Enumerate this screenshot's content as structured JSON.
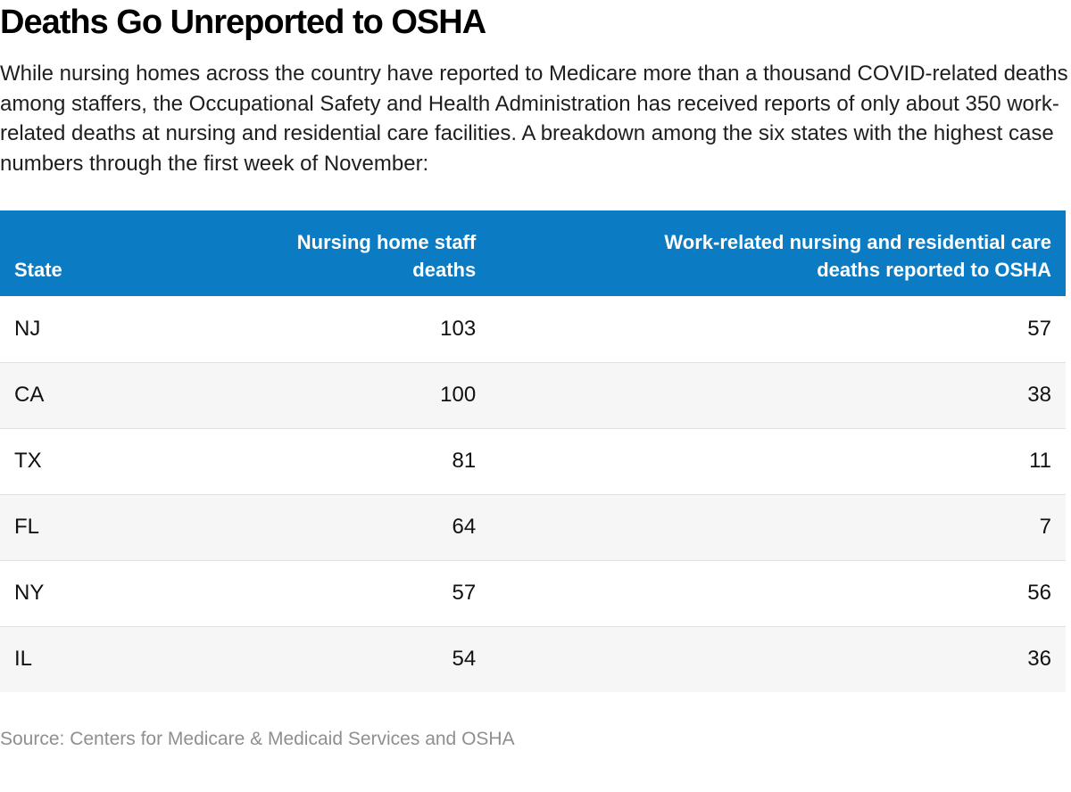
{
  "header": {
    "title": "Deaths Go Unreported to OSHA",
    "description": "While nursing homes across the country have reported to Medicare more than a thousand COVID-related deaths among staffers, the Occupational Safety and Health Administration has received reports of only about 350 work-related deaths at nursing and residential care facilities. A breakdown among the six states with the highest case numbers through the first week of November:"
  },
  "table": {
    "columns": [
      {
        "label": "State"
      },
      {
        "label": "Nursing home staff\ndeaths"
      },
      {
        "label": "Work-related nursing and residential care\ndeaths reported to OSHA"
      }
    ]
  },
  "chart_data": {
    "type": "table",
    "title": "Deaths Go Unreported to OSHA",
    "columns": [
      "State",
      "Nursing home staff deaths",
      "Work-related nursing and residential care deaths reported to OSHA"
    ],
    "rows": [
      [
        "NJ",
        103,
        57
      ],
      [
        "CA",
        100,
        38
      ],
      [
        "TX",
        81,
        11
      ],
      [
        "FL",
        64,
        7
      ],
      [
        "NY",
        57,
        56
      ],
      [
        "IL",
        54,
        36
      ]
    ],
    "source": "Source: Centers for Medicare & Medicaid Services and OSHA"
  },
  "footer": {
    "source": "Source: Centers for Medicare & Medicaid Services and OSHA"
  },
  "colors": {
    "header_bg": "#0b7cc4",
    "header_text": "#ffffff",
    "row_alt_bg": "#f6f6f6",
    "row_border": "#e0e0e0",
    "source_text": "#8f8f8f"
  }
}
